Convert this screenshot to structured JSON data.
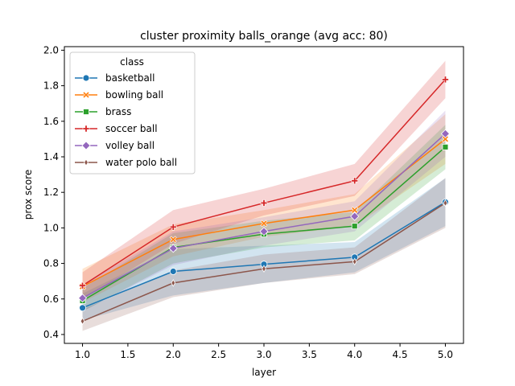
{
  "chart_data": {
    "type": "line",
    "title": "cluster proximity balls_orange (avg acc: 80)",
    "xlabel": "layer",
    "ylabel": "prox score",
    "xlim": [
      0.8,
      5.2
    ],
    "ylim": [
      0.35,
      2.02
    ],
    "xticks": [
      1.0,
      1.5,
      2.0,
      2.5,
      3.0,
      3.5,
      4.0,
      4.5,
      5.0
    ],
    "yticks": [
      0.4,
      0.6,
      0.8,
      1.0,
      1.2,
      1.4,
      1.6,
      1.8,
      2.0
    ],
    "legend": {
      "title": "class",
      "placement": "upper left"
    },
    "x": [
      1,
      2,
      3,
      4,
      5
    ],
    "series": [
      {
        "name": "basketball",
        "color": "#1f77b4",
        "marker": "circle",
        "values": [
          0.55,
          0.755,
          0.795,
          0.835,
          1.145
        ],
        "ci_low": [
          0.48,
          0.62,
          0.69,
          0.75,
          1.01
        ],
        "ci_high": [
          0.63,
          0.88,
          0.9,
          0.92,
          1.28
        ]
      },
      {
        "name": "bowling ball",
        "color": "#ff7f0e",
        "marker": "x",
        "values": [
          0.67,
          0.935,
          1.025,
          1.1,
          1.5
        ],
        "ci_low": [
          0.58,
          0.84,
          0.95,
          1.01,
          1.36
        ],
        "ci_high": [
          0.77,
          1.02,
          1.1,
          1.19,
          1.64
        ]
      },
      {
        "name": "brass",
        "color": "#2ca02c",
        "marker": "square",
        "values": [
          0.59,
          0.89,
          0.965,
          1.01,
          1.455
        ],
        "ci_low": [
          0.53,
          0.8,
          0.89,
          0.93,
          1.33
        ],
        "ci_high": [
          0.66,
          0.97,
          1.04,
          1.09,
          1.58
        ]
      },
      {
        "name": "soccer ball",
        "color": "#d62728",
        "marker": "plus",
        "values": [
          0.675,
          1.005,
          1.14,
          1.265,
          1.835
        ],
        "ci_low": [
          0.6,
          0.91,
          1.07,
          1.18,
          1.73
        ],
        "ci_high": [
          0.75,
          1.1,
          1.22,
          1.36,
          1.94
        ]
      },
      {
        "name": "volley ball",
        "color": "#9467bd",
        "marker": "diamond",
        "values": [
          0.605,
          0.885,
          0.98,
          1.065,
          1.53
        ],
        "ci_low": [
          0.53,
          0.79,
          0.9,
          0.98,
          1.4
        ],
        "ci_high": [
          0.68,
          0.98,
          1.06,
          1.15,
          1.66
        ]
      },
      {
        "name": "water polo ball",
        "color": "#8c564b",
        "marker": "thin-diamond",
        "values": [
          0.475,
          0.69,
          0.77,
          0.81,
          1.14
        ],
        "ci_low": [
          0.42,
          0.61,
          0.69,
          0.74,
          1.0
        ],
        "ci_high": [
          0.54,
          0.76,
          0.85,
          0.89,
          1.28
        ]
      }
    ]
  }
}
